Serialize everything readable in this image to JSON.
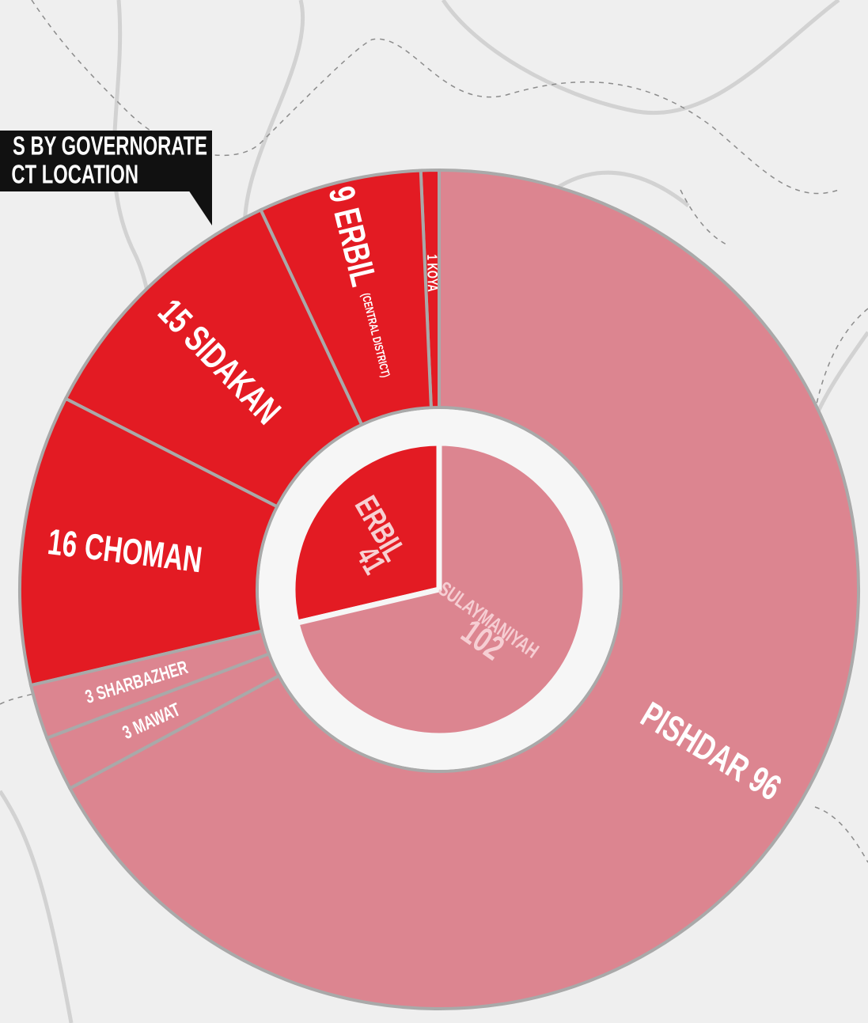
{
  "chart_data": {
    "type": "sunburst",
    "title_lines": [
      "S BY GOVERNORATE",
      "CT LOCATION"
    ],
    "groups": [
      {
        "name": "ERBIL",
        "value": 41,
        "color": "#e31b23",
        "label_color": "#f7d0d2",
        "children": [
          {
            "name": "KOYA",
            "value": 1
          },
          {
            "name": "ERBIL",
            "value": 9,
            "note": "(CENTRAL DISTRICT)"
          },
          {
            "name": "SIDAKAN",
            "value": 15
          },
          {
            "name": "CHOMAN",
            "value": 16
          }
        ]
      },
      {
        "name": "SULAYMANIYAH",
        "value": 102,
        "color": "#dc8590",
        "label_color": "#f6ced3",
        "children": [
          {
            "name": "SHARBAZHER",
            "value": 3
          },
          {
            "name": "MAWAT",
            "value": 3
          },
          {
            "name": "PISHDAR",
            "value": 96
          }
        ]
      }
    ]
  }
}
